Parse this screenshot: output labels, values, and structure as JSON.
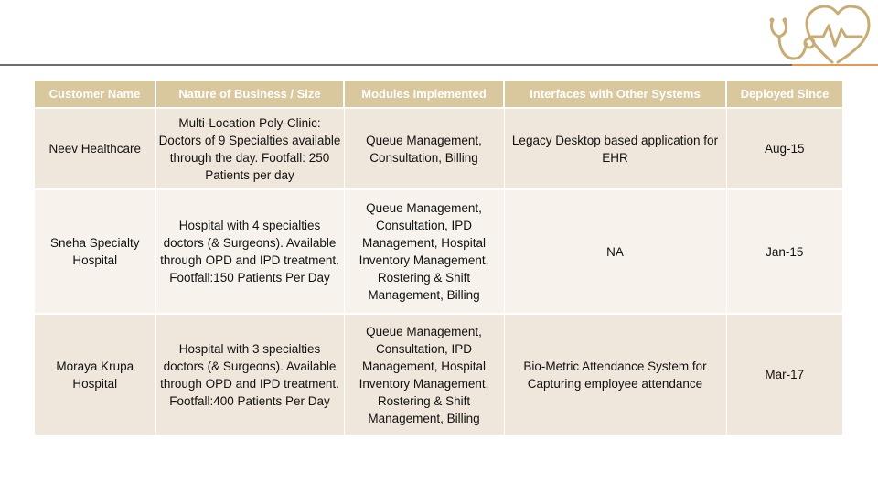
{
  "brand": {
    "logo_icon": "stethoscope-heart-icon",
    "accent": "#e39a55"
  },
  "table": {
    "headers": [
      "Customer Name",
      "Nature of Business / Size",
      "Modules Implemented",
      "Interfaces with Other Systems",
      "Deployed Since"
    ],
    "rows": [
      {
        "customer": "Neev Healthcare",
        "nature": "Multi-Location Poly-Clinic: Doctors of 9 Specialties available through the day. Footfall: 250 Patients per day",
        "modules": "Queue Management, Consultation, Billing",
        "interfaces": "Legacy Desktop based application for EHR",
        "deployed": "Aug-15"
      },
      {
        "customer": "Sneha Specialty Hospital",
        "nature": "Hospital with 4 specialties doctors (& Surgeons). Available through OPD and IPD treatment. Footfall:150 Patients Per Day",
        "modules": "Queue Management, Consultation, IPD Management, Hospital Inventory Management, Rostering & Shift Management, Billing",
        "interfaces": "NA",
        "deployed": "Jan-15"
      },
      {
        "customer": "Moraya Krupa Hospital",
        "nature": "Hospital with 3 specialties doctors (& Surgeons). Available through OPD and IPD treatment. Footfall:400 Patients Per Day",
        "modules": "Queue Management, Consultation, IPD Management, Hospital Inventory Management, Rostering & Shift Management, Billing",
        "interfaces": "Bio-Metric Attendance System for Capturing employee attendance",
        "deployed": "Mar-17"
      }
    ]
  }
}
